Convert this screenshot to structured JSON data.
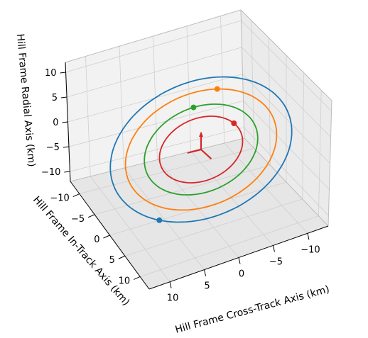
{
  "chart_data": {
    "type": "line3d",
    "title": "",
    "xlabel": "Hill Frame Cross-Track Axis (km)",
    "ylabel": "Hill Frame In-Track Axis (km)",
    "zlabel": "Hill Frame Radial Axis (km)",
    "xlim": [
      -13,
      13
    ],
    "ylim": [
      -13,
      13
    ],
    "zlim": [
      -12,
      12
    ],
    "x_ticks": [
      "10",
      "5",
      "0",
      "−5",
      "−10"
    ],
    "y_ticks": [
      "−10",
      "−5",
      "0",
      "5",
      "10"
    ],
    "z_ticks": [
      "10",
      "5",
      "0",
      "−5",
      "−10"
    ],
    "grid": true,
    "series": [
      {
        "color": "#1f77b4",
        "semi_axis_a_km": 12,
        "semi_axis_b_km": 6,
        "marker_angle_deg": 135
      },
      {
        "color": "#ff7f0e",
        "semi_axis_a_km": 10,
        "semi_axis_b_km": 5,
        "marker_angle_deg": -60
      },
      {
        "color": "#2ca02c",
        "semi_axis_a_km": 7.5,
        "semi_axis_b_km": 3.75,
        "marker_angle_deg": -80
      },
      {
        "color": "#d62728",
        "semi_axis_a_km": 5.5,
        "semi_axis_b_km": 2.75,
        "marker_angle_deg": -20
      }
    ],
    "frame_triad": {
      "color": "#d62728",
      "length_km": 3
    }
  }
}
